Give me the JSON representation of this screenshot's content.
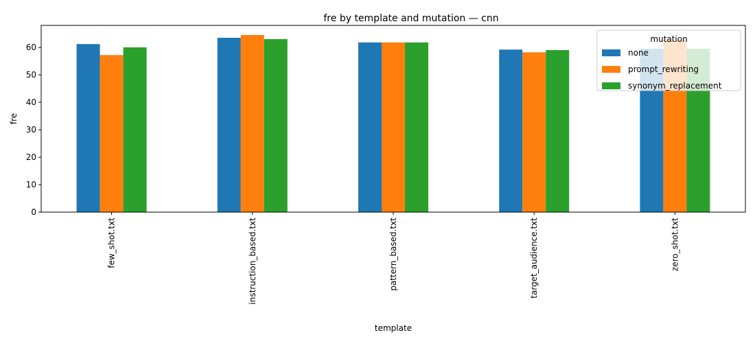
{
  "chart_data": {
    "type": "bar",
    "title": "fre by template and mutation — cnn",
    "xlabel": "template",
    "ylabel": "fre",
    "categories": [
      "few_shot.txt",
      "instruction_based.txt",
      "pattern_based.txt",
      "target_audience.txt",
      "zero_shot.txt"
    ],
    "series": [
      {
        "name": "none",
        "color": "#1f77b4",
        "values": [
          61.2,
          63.5,
          61.8,
          59.2,
          59.5
        ]
      },
      {
        "name": "prompt_rewriting",
        "color": "#ff7f0e",
        "values": [
          57.2,
          64.5,
          61.8,
          58.2,
          62.8
        ]
      },
      {
        "name": "synonym_replacement",
        "color": "#2ca02c",
        "values": [
          60.0,
          63.0,
          61.8,
          59.0,
          59.5
        ]
      }
    ],
    "ylim": [
      0,
      68
    ],
    "yticks": [
      0,
      10,
      20,
      30,
      40,
      50,
      60
    ],
    "grid": false,
    "legend": {
      "title": "mutation",
      "placement": "top-right"
    }
  }
}
